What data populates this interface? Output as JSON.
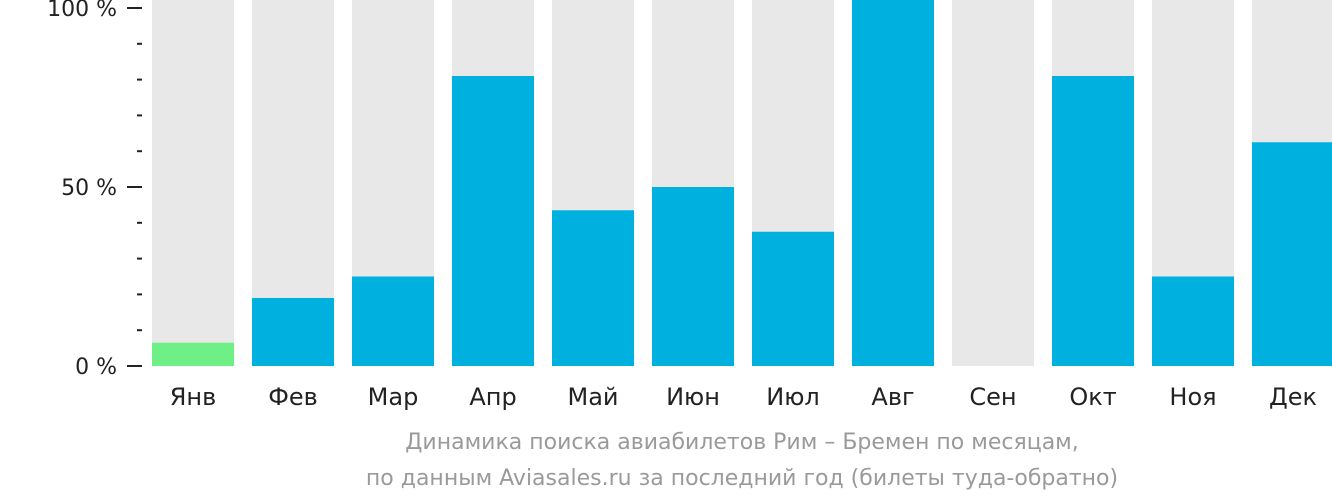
{
  "chart_data": {
    "type": "bar",
    "categories": [
      "Янв",
      "Фев",
      "Мар",
      "Апр",
      "Май",
      "Июн",
      "Июл",
      "Авг",
      "Сен",
      "Окт",
      "Ноя",
      "Дек"
    ],
    "values": [
      6.5,
      19,
      25,
      81,
      43.5,
      50,
      37.5,
      103,
      0,
      81,
      25,
      62.5
    ],
    "highlight_index": 0,
    "ylim": [
      0,
      100
    ],
    "yticks": [
      {
        "value": 0,
        "label": "0 %"
      },
      {
        "value": 50,
        "label": "50 %"
      },
      {
        "value": 100,
        "label": "100 %"
      }
    ],
    "minor_step": 10,
    "colors": {
      "bar": "#00b0de",
      "highlight": "#6ef087",
      "background_bar": "#e8e8e8",
      "axis": "#222222"
    }
  },
  "caption": {
    "line1": "Динамика поиска авиабилетов Рим – Бремен по месяцам,",
    "line2": "по данным Aviasales.ru за последний год (билеты туда-обратно)"
  }
}
